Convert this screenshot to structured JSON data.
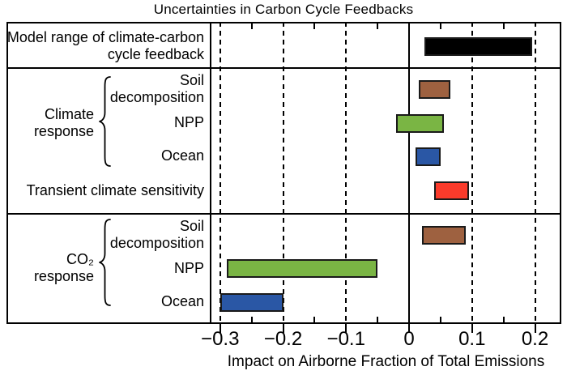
{
  "chart_data": {
    "type": "bar",
    "orientation": "horizontal",
    "title": "Uncertainties in Carbon Cycle Feedbacks",
    "xlabel": "Impact on Airborne Fraction of Total Emissions",
    "xlim": [
      -0.315,
      0.24
    ],
    "grid": "dashed vertical lines at major ticks, solid line at zero",
    "x_ticks": [
      {
        "value": -0.3,
        "label": "−0.3"
      },
      {
        "value": -0.2,
        "label": "−0.2"
      },
      {
        "value": -0.1,
        "label": "−0.1"
      },
      {
        "value": 0,
        "label": "0"
      },
      {
        "value": 0.1,
        "label": "0.1"
      },
      {
        "value": 0.2,
        "label": "0.2"
      }
    ],
    "x_minor_ticks": [
      -0.25,
      -0.15,
      -0.05,
      0.05,
      0.15
    ],
    "gridlines_dashed": [
      -0.3,
      -0.2,
      -0.1,
      0.1,
      0.2
    ],
    "zero_line": 0,
    "groups": [
      {
        "id": "climate-response",
        "label": "Climate\nresponse"
      },
      {
        "id": "co2-response",
        "label": "CO₂\nresponse"
      }
    ],
    "rows": [
      {
        "id": "model-range",
        "label": "Model range of climate-carbon\ncycle feedback",
        "start": 0.025,
        "end": 0.195,
        "color": "#000000"
      },
      {
        "id": "climate-soil-decomposition",
        "label": "Soil\ndecomposition",
        "start": 0.015,
        "end": 0.065,
        "color": "#9e6140"
      },
      {
        "id": "climate-npp",
        "label": "NPP",
        "start": -0.02,
        "end": 0.055,
        "color": "#7ab544"
      },
      {
        "id": "climate-ocean",
        "label": "Ocean",
        "start": 0.01,
        "end": 0.05,
        "color": "#2a57a5"
      },
      {
        "id": "transient-climate-sensitivity",
        "label": "Transient climate sensitivity",
        "start": 0.04,
        "end": 0.095,
        "color": "#fb3b2b"
      },
      {
        "id": "co2-soil-decomposition",
        "label": "Soil\ndecomposition",
        "start": 0.02,
        "end": 0.09,
        "color": "#9e6140"
      },
      {
        "id": "co2-npp",
        "label": "NPP",
        "start": -0.29,
        "end": -0.05,
        "color": "#7ab544"
      },
      {
        "id": "co2-ocean",
        "label": "Ocean",
        "start": -0.3,
        "end": -0.2,
        "color": "#2a57a5"
      }
    ]
  }
}
